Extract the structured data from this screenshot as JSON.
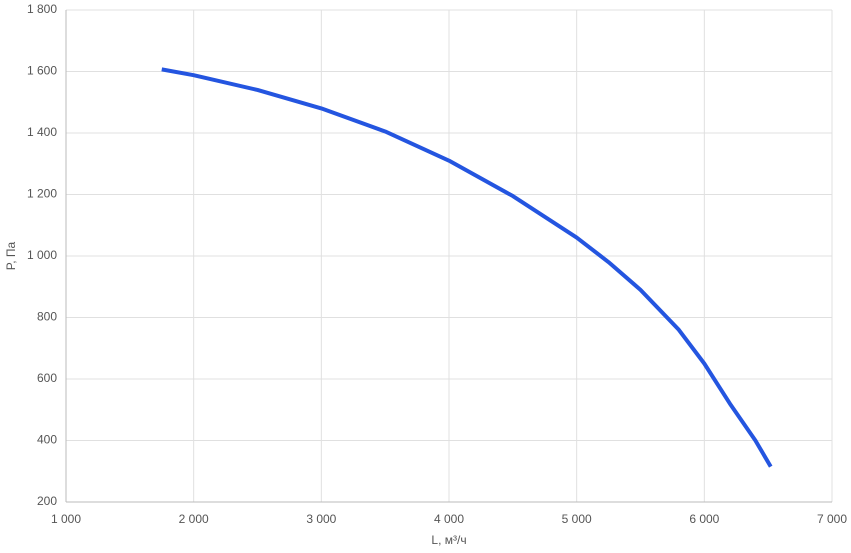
{
  "chart_data": {
    "type": "line",
    "xlabel": "L, м³/ч",
    "ylabel": "P, Па",
    "x": [
      1750,
      2000,
      2500,
      3000,
      3500,
      4000,
      4500,
      5000,
      5250,
      5500,
      5800,
      6000,
      6200,
      6400,
      6520
    ],
    "values": [
      1607,
      1588,
      1540,
      1480,
      1405,
      1310,
      1195,
      1060,
      980,
      890,
      760,
      650,
      520,
      400,
      315
    ],
    "color": "#2455e0",
    "xlim": [
      1000,
      7000
    ],
    "xticks": [
      {
        "value": 1000,
        "label": "1 000"
      },
      {
        "value": 2000,
        "label": "2 000"
      },
      {
        "value": 3000,
        "label": "3 000"
      },
      {
        "value": 4000,
        "label": "4 000"
      },
      {
        "value": 5000,
        "label": "5 000"
      },
      {
        "value": 6000,
        "label": "6 000"
      },
      {
        "value": 7000,
        "label": "7 000"
      }
    ],
    "ylim": [
      200,
      1800
    ],
    "yticks": [
      200,
      400,
      600,
      800,
      {
        "value": 1000,
        "label": "1 000"
      },
      {
        "value": 1200,
        "label": "1 200"
      },
      {
        "value": 1400,
        "label": "1 400"
      },
      {
        "value": 1600,
        "label": "1 600"
      },
      {
        "value": 1800,
        "label": "1 800"
      }
    ],
    "grid": true
  }
}
